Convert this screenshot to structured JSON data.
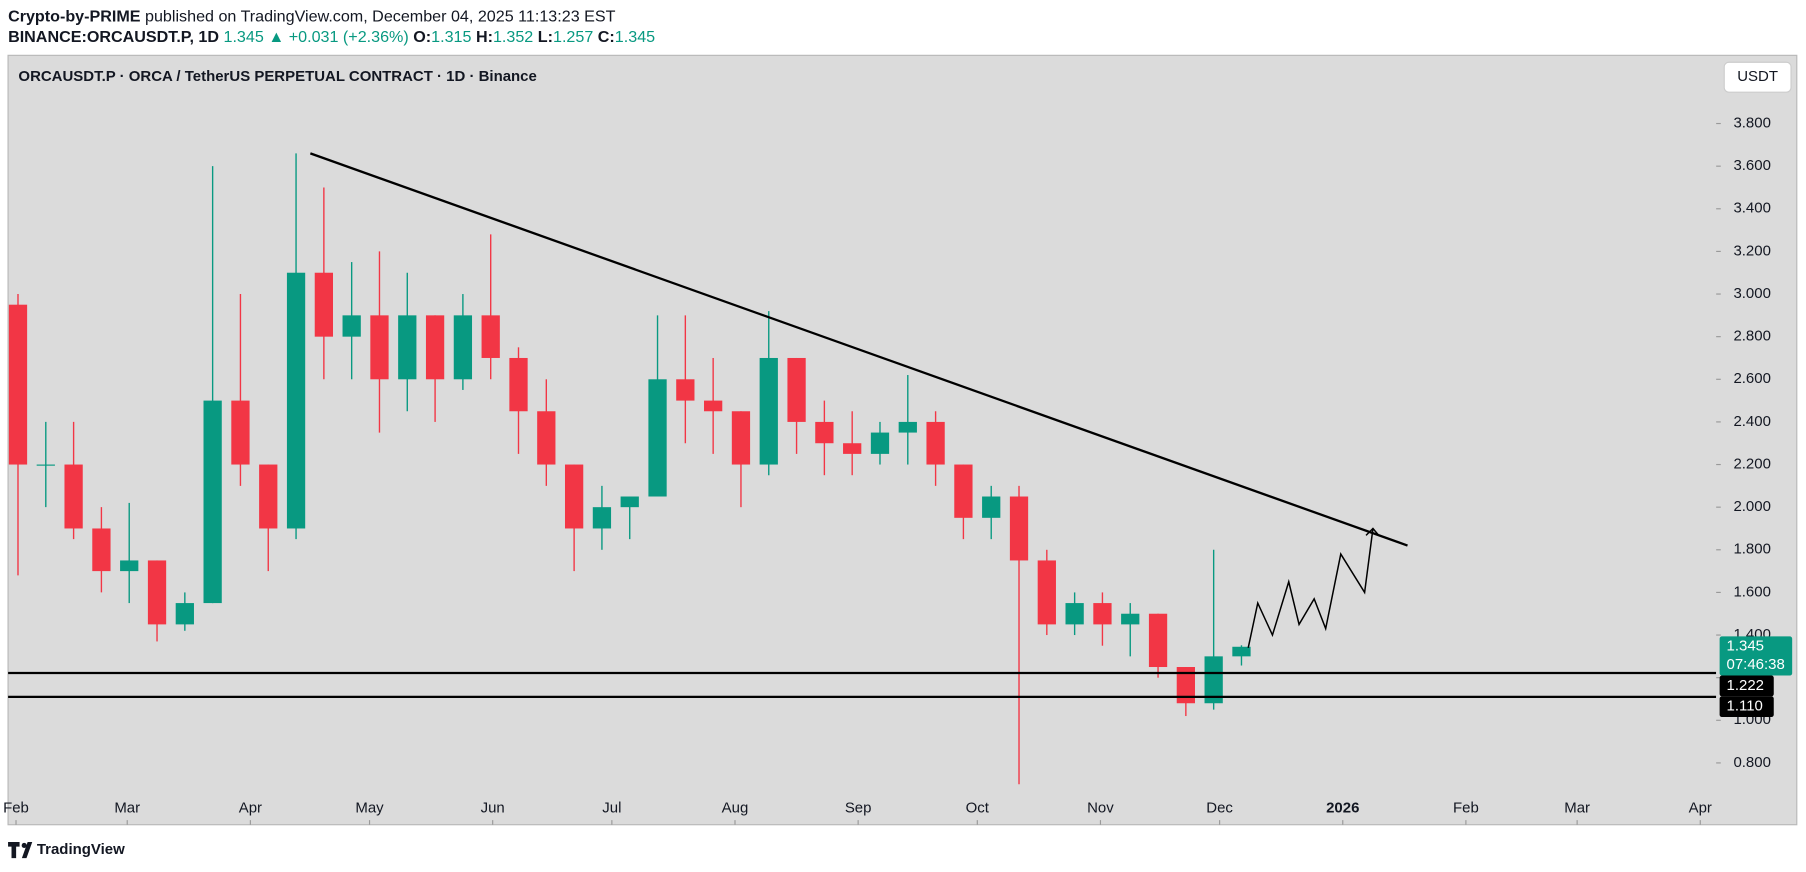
{
  "header": {
    "author": "Crypto-by-PRIME",
    "published": "published on TradingView.com, December 04, 2025 11:13:23 EST",
    "symbol": "BINANCE:ORCAUSDT.P, 1D",
    "last": "1.345",
    "change": "▲ +0.031 (+2.36%)",
    "o_label": "O:",
    "o": "1.315",
    "h_label": "H:",
    "h": "1.352",
    "l_label": "L:",
    "l": "1.257",
    "c_label": "C:",
    "c": "1.345"
  },
  "chart_data": {
    "type": "candlestick",
    "title": "ORCAUSDT.P · ORCA / TetherUS PERPETUAL CONTRACT · 1D · Binance",
    "currency": "USDT",
    "up_color": "#089981",
    "down_color": "#f23645",
    "x": [
      29,
      36,
      43,
      50,
      57,
      64,
      71,
      78,
      85,
      92,
      99,
      106,
      113,
      120,
      127,
      134,
      141,
      148,
      155,
      162,
      169,
      176,
      183,
      190,
      197,
      204,
      211,
      218,
      225,
      232,
      239,
      246,
      253,
      260,
      267,
      274,
      281,
      288,
      295,
      302,
      309,
      316,
      323,
      330,
      337
    ],
    "open": [
      2.95,
      2.2,
      2.2,
      1.9,
      1.7,
      1.75,
      1.45,
      1.55,
      2.5,
      2.2,
      1.9,
      3.1,
      2.8,
      2.9,
      2.6,
      2.9,
      2.6,
      2.9,
      2.7,
      2.45,
      2.2,
      1.9,
      2.0,
      2.05,
      2.6,
      2.5,
      2.45,
      2.2,
      2.7,
      2.4,
      2.3,
      2.25,
      2.35,
      2.4,
      2.2,
      1.95,
      2.05,
      1.75,
      1.45,
      1.55,
      1.45,
      1.5,
      1.25,
      1.08,
      1.3
    ],
    "high": [
      3.0,
      2.4,
      2.4,
      2.0,
      2.02,
      1.75,
      1.6,
      3.6,
      3.0,
      2.2,
      3.66,
      3.5,
      3.15,
      3.2,
      3.1,
      2.9,
      3.0,
      3.28,
      2.75,
      2.6,
      2.2,
      2.1,
      2.05,
      2.9,
      2.9,
      2.7,
      2.45,
      2.92,
      2.7,
      2.5,
      2.45,
      2.4,
      2.62,
      2.45,
      2.2,
      2.1,
      2.1,
      1.8,
      1.6,
      1.6,
      1.55,
      1.5,
      1.25,
      1.8,
      1.352
    ],
    "low": [
      1.68,
      2.0,
      1.85,
      1.6,
      1.55,
      1.37,
      1.42,
      1.55,
      2.1,
      1.7,
      1.85,
      2.6,
      2.6,
      2.35,
      2.45,
      2.4,
      2.55,
      2.6,
      2.25,
      2.1,
      1.7,
      1.8,
      1.85,
      2.05,
      2.3,
      2.25,
      2.0,
      2.15,
      2.25,
      2.15,
      2.15,
      2.2,
      2.2,
      2.1,
      1.85,
      1.85,
      0.7,
      1.4,
      1.4,
      1.35,
      1.3,
      1.2,
      1.02,
      1.05,
      1.257
    ],
    "close": [
      2.2,
      2.2,
      1.9,
      1.7,
      1.75,
      1.45,
      1.55,
      2.5,
      2.2,
      1.9,
      3.1,
      2.8,
      2.9,
      2.6,
      2.9,
      2.6,
      2.9,
      2.7,
      2.45,
      2.2,
      1.9,
      2.0,
      2.05,
      2.6,
      2.5,
      2.45,
      2.2,
      2.7,
      2.4,
      2.3,
      2.25,
      2.35,
      2.4,
      2.2,
      1.95,
      2.05,
      1.75,
      1.45,
      1.55,
      1.45,
      1.5,
      1.25,
      1.08,
      1.3,
      1.345
    ],
    "xlim": [
      30,
      460
    ],
    "ylim": [
      0.51,
      4.12
    ],
    "xticks": [
      {
        "value": 32,
        "label": "Feb"
      },
      {
        "value": 60,
        "label": "Mar"
      },
      {
        "value": 91,
        "label": "Apr"
      },
      {
        "value": 121,
        "label": "May"
      },
      {
        "value": 152,
        "label": "Jun"
      },
      {
        "value": 182,
        "label": "Jul"
      },
      {
        "value": 213,
        "label": "Aug"
      },
      {
        "value": 244,
        "label": "Sep"
      },
      {
        "value": 274,
        "label": "Oct"
      },
      {
        "value": 305,
        "label": "Nov"
      },
      {
        "value": 335,
        "label": "Dec"
      },
      {
        "value": 366,
        "label": "2026"
      },
      {
        "value": 397,
        "label": "Feb"
      },
      {
        "value": 425,
        "label": "Mar"
      },
      {
        "value": 456,
        "label": "Apr"
      }
    ],
    "yticks": [
      {
        "value": 0.8,
        "label": "0.800"
      },
      {
        "value": 1.0,
        "label": "1.000"
      },
      {
        "value": 1.2,
        "label": "1.200"
      },
      {
        "value": 1.4,
        "label": "1.400"
      },
      {
        "value": 1.6,
        "label": "1.600"
      },
      {
        "value": 1.8,
        "label": "1.800"
      },
      {
        "value": 2.0,
        "label": "2.000"
      },
      {
        "value": 2.2,
        "label": "2.200"
      },
      {
        "value": 2.4,
        "label": "2.400"
      },
      {
        "value": 2.6,
        "label": "2.600"
      },
      {
        "value": 2.8,
        "label": "2.800"
      },
      {
        "value": 3.0,
        "label": "3.000"
      },
      {
        "value": 3.2,
        "label": "3.200"
      },
      {
        "value": 3.4,
        "label": "3.400"
      },
      {
        "value": 3.6,
        "label": "3.600"
      },
      {
        "value": 3.8,
        "label": "3.800"
      }
    ],
    "trendline": {
      "x": [
        106.1,
        382.3
      ],
      "y": [
        3.66,
        1.82
      ]
    },
    "hlines": [
      1.222,
      1.11
    ],
    "projection": {
      "x": [
        342.2,
        344.6,
        348.3,
        352.4,
        355.0,
        358.8,
        361.7,
        365.5,
        371.5,
        373.6
      ],
      "y": [
        1.34,
        1.55,
        1.4,
        1.65,
        1.45,
        1.57,
        1.43,
        1.78,
        1.6,
        1.9
      ]
    },
    "price_labels": [
      {
        "value": 1.345,
        "label": "1.345",
        "color": "#089981"
      },
      {
        "value": 1.222,
        "label": "1.222",
        "color": "#000000"
      },
      {
        "value": 1.11,
        "label": "1.110",
        "color": "#000000"
      }
    ],
    "countdown": "07:46:38"
  },
  "footer": {
    "brand": "TradingView"
  }
}
